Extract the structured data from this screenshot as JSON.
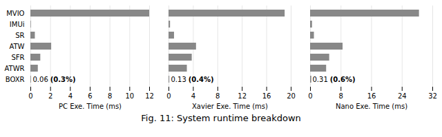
{
  "title": "Fig. 11: System runtime breakdown",
  "chart_data": [
    {
      "type": "bar",
      "orientation": "horizontal",
      "categories": [
        "MVIO",
        "IMUi",
        "SR",
        "ATW",
        "SFR",
        "ATWR",
        "BOXR"
      ],
      "values": [
        12.0,
        0.05,
        0.45,
        2.1,
        1.0,
        0.75,
        0.06
      ],
      "color": "#888888",
      "xlabel": "PC Exe. Time (ms)",
      "xlim": [
        0,
        12
      ],
      "xticks": [
        0,
        2,
        4,
        6,
        8,
        10,
        12
      ],
      "grid": true,
      "annotations": [
        {
          "text": "0.06",
          "category": "BOXR"
        },
        {
          "text": "(0.3%)",
          "category": "BOXR"
        }
      ]
    },
    {
      "type": "bar",
      "orientation": "horizontal",
      "categories": [
        "MVIO",
        "IMUi",
        "SR",
        "ATW",
        "SFR",
        "ATWR",
        "BOXR"
      ],
      "values": [
        19.0,
        0.25,
        0.9,
        4.5,
        3.8,
        3.0,
        0.13
      ],
      "color": "#888888",
      "xlabel": "Xavier Exe. Time (ms)",
      "xlim": [
        0,
        20
      ],
      "xticks": [
        0,
        4,
        8,
        12,
        16,
        20
      ],
      "grid": true,
      "tick_labels": "x",
      "annotations": [
        {
          "text": "0.13",
          "category": "BOXR"
        },
        {
          "text": "(0.4%)",
          "category": "BOXR"
        }
      ]
    },
    {
      "type": "bar",
      "orientation": "horizontal",
      "categories": [
        "MVIO",
        "IMUi",
        "SR",
        "ATW",
        "SFR",
        "ATWR",
        "BOXR"
      ],
      "values": [
        28.5,
        0.5,
        1.0,
        8.5,
        5.0,
        4.2,
        0.31
      ],
      "color": "#888888",
      "xlabel": "Nano Exe. Time (ms)",
      "xlim": [
        0,
        32
      ],
      "xticks": [
        0,
        8,
        16,
        24,
        32
      ],
      "grid": true,
      "tick_labels": "x",
      "annotations": [
        {
          "text": "0.31",
          "category": "BOXR"
        },
        {
          "text": "(0.6%)",
          "category": "BOXR"
        }
      ]
    }
  ]
}
